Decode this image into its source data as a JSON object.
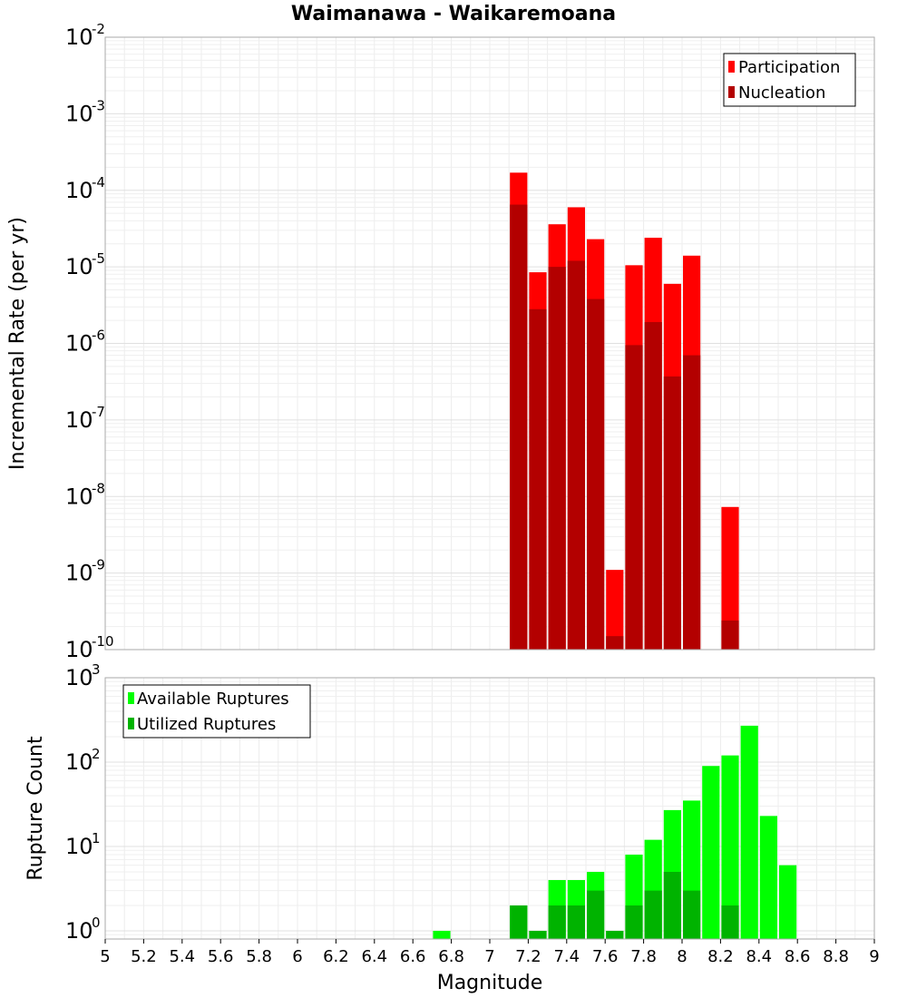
{
  "chart_data": [
    {
      "type": "bar",
      "title": "Waimanawa - Waikaremoana",
      "xlabel": "",
      "ylabel": "Incremental Rate (per yr)",
      "xlim": [
        5,
        9
      ],
      "ylim": [
        1e-10,
        0.01
      ],
      "yscale": "log",
      "y_tick_exponents": [
        -10,
        -9,
        -8,
        -7,
        -6,
        -5,
        -4,
        -3,
        -2
      ],
      "bar_width": 0.1,
      "grid": true,
      "legend_position": "top-right",
      "series": [
        {
          "name": "Participation",
          "color": "#ff0000",
          "x": [
            7.15,
            7.25,
            7.35,
            7.45,
            7.55,
            7.65,
            7.75,
            7.85,
            7.95,
            8.05,
            8.25
          ],
          "values": [
            0.00017,
            8.5e-06,
            3.6e-05,
            6e-05,
            2.3e-05,
            1.1e-09,
            1.05e-05,
            2.4e-05,
            6e-06,
            1.4e-05,
            7.3e-09
          ]
        },
        {
          "name": "Nucleation",
          "color": "#b30000",
          "x": [
            7.15,
            7.25,
            7.35,
            7.45,
            7.55,
            7.65,
            7.75,
            7.85,
            7.95,
            8.05,
            8.25
          ],
          "values": [
            6.5e-05,
            2.8e-06,
            1e-05,
            1.2e-05,
            3.8e-06,
            1.5e-10,
            9.5e-07,
            1.9e-06,
            3.7e-07,
            7e-07,
            2.4e-10
          ]
        }
      ]
    },
    {
      "type": "bar",
      "title": "",
      "xlabel": "Magnitude",
      "ylabel": "Rupture Count",
      "xlim": [
        5,
        9
      ],
      "ylim": [
        0.8,
        1000
      ],
      "yscale": "log",
      "y_tick_exponents": [
        0,
        1,
        2,
        3
      ],
      "bar_width": 0.1,
      "grid": true,
      "legend_position": "top-left",
      "x_ticks": [
        "5",
        "5.2",
        "5.4",
        "5.6",
        "5.8",
        "6",
        "6.2",
        "6.4",
        "6.6",
        "6.8",
        "7",
        "7.2",
        "7.4",
        "7.6",
        "7.8",
        "8",
        "8.2",
        "8.4",
        "8.6",
        "8.8",
        "9"
      ],
      "series": [
        {
          "name": "Available Ruptures",
          "color": "#00ff00",
          "x": [
            6.75,
            7.15,
            7.25,
            7.35,
            7.45,
            7.55,
            7.65,
            7.75,
            7.85,
            7.95,
            8.05,
            8.15,
            8.25,
            8.35,
            8.45,
            8.55
          ],
          "values": [
            1,
            2,
            1,
            4,
            4,
            5,
            1,
            8,
            12,
            27,
            35,
            90,
            120,
            270,
            23,
            6
          ]
        },
        {
          "name": "Utilized Ruptures",
          "color": "#00b300",
          "x": [
            7.15,
            7.25,
            7.35,
            7.45,
            7.55,
            7.65,
            7.75,
            7.85,
            7.95,
            8.05,
            8.25
          ],
          "values": [
            2,
            1,
            2,
            2,
            3,
            1,
            2,
            3,
            5,
            3,
            2
          ]
        }
      ]
    }
  ]
}
